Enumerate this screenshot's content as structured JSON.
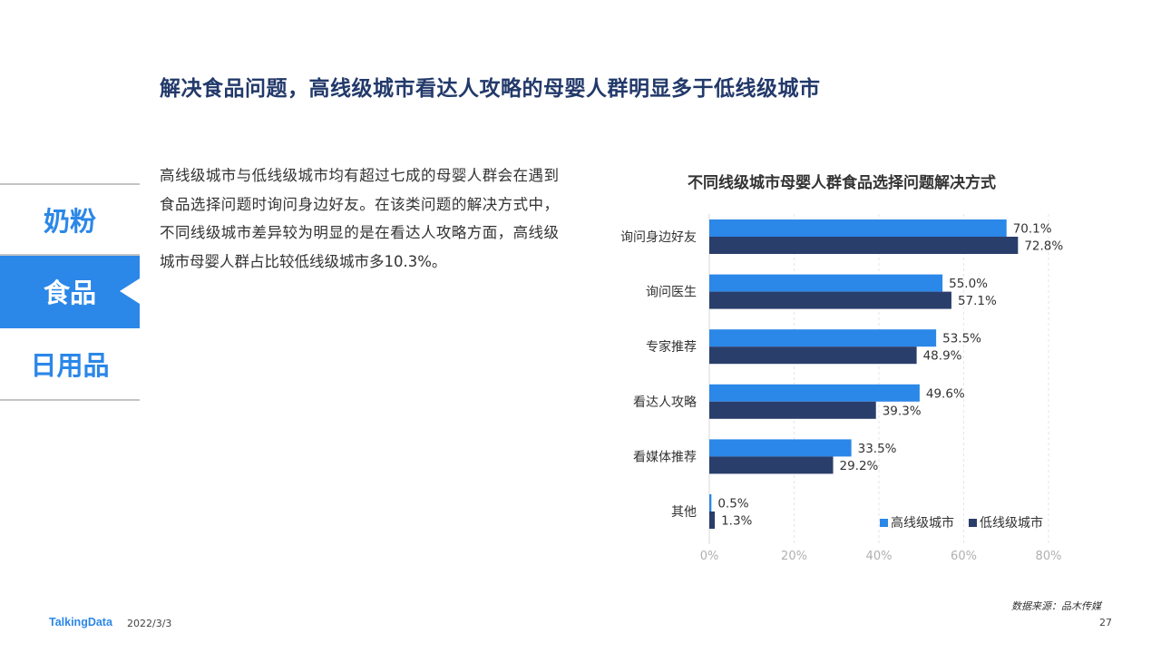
{
  "header": {
    "title": "解决食品问题，高线级城市看达人攻略的母婴人群明显多于低线级城市"
  },
  "sidebar": {
    "items": [
      {
        "label": "奶粉"
      },
      {
        "label": "食品"
      },
      {
        "label": "日用品"
      }
    ],
    "active_index": 1
  },
  "summary": "高线级城市与低线级城市均有超过七成的母婴人群会在遇到食品选择问题时询问身边好友。在该类问题的解决方式中，不同线级城市差异较为明显的是在看达人攻略方面，高线级城市母婴人群占比较低线级城市多10.3%。",
  "chart_data": {
    "type": "bar",
    "orientation": "horizontal",
    "title": "不同线级城市母婴人群食品选择问题解决方式",
    "categories": [
      "询问身边好友",
      "询问医生",
      "专家推荐",
      "看达人攻略",
      "看媒体推荐",
      "其他"
    ],
    "series": [
      {
        "name": "高线级城市",
        "values": [
          70.1,
          55.0,
          53.5,
          49.6,
          33.5,
          0.5
        ],
        "labels": [
          "70.1%",
          "55.0%",
          "53.5%",
          "49.6%",
          "33.5%",
          "0.5%"
        ],
        "color": "#2b87e8"
      },
      {
        "name": "低线级城市",
        "values": [
          72.8,
          57.1,
          48.9,
          39.3,
          29.2,
          1.3
        ],
        "labels": [
          "72.8%",
          "57.1%",
          "48.9%",
          "39.3%",
          "29.2%",
          "1.3%"
        ],
        "color": "#2a3e6b"
      }
    ],
    "xlim": [
      0,
      80
    ],
    "xticks": [
      "0%",
      "20%",
      "40%",
      "60%",
      "80%"
    ],
    "grid": true,
    "legend_position": "bottom-right"
  },
  "footer": {
    "source": "数据来源：品木传媒",
    "logo": "TalkingData",
    "date": "2022/3/3",
    "page": "27"
  }
}
